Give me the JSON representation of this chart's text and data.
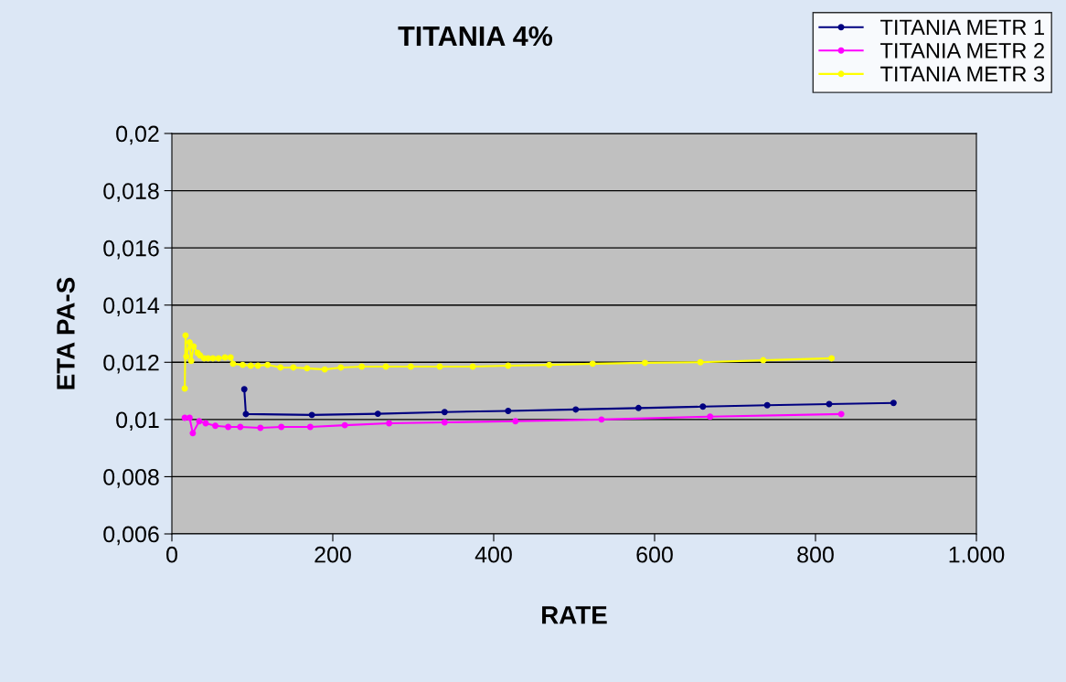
{
  "chart_data": {
    "type": "line",
    "title": "TITANIA 4%",
    "xlabel": "RATE",
    "ylabel": "ETA PA-S",
    "xlim": [
      0,
      1000
    ],
    "xticks": [
      0,
      200,
      400,
      600,
      800,
      {
        "value": 1000,
        "label": "1.000"
      }
    ],
    "ylim": [
      0.006,
      0.02
    ],
    "yticks": [
      {
        "value": 0.006,
        "label": "0,006"
      },
      {
        "value": 0.008,
        "label": "0,008"
      },
      {
        "value": 0.01,
        "label": "0,01"
      },
      {
        "value": 0.012,
        "label": "0,012"
      },
      {
        "value": 0.014,
        "label": "0,014"
      },
      {
        "value": 0.016,
        "label": "0,016"
      },
      {
        "value": 0.018,
        "label": "0,018"
      },
      {
        "value": 0.02,
        "label": "0,02"
      }
    ],
    "grid": "y",
    "legend": "top right",
    "marker": "circle",
    "series": [
      {
        "name": "TITANIA METR 1",
        "color": "#000080",
        "x": [
          90,
          92,
          174,
          256,
          339,
          418,
          502,
          580,
          660,
          740,
          817,
          897
        ],
        "values": [
          0.01106,
          0.01019,
          0.01016,
          0.0102,
          0.01026,
          0.0103,
          0.01035,
          0.0104,
          0.01045,
          0.0105,
          0.01054,
          0.01058
        ]
      },
      {
        "name": "TITANIA METR 2",
        "color": "#ff00ff",
        "x": [
          16,
          22,
          26,
          34,
          42,
          54,
          70,
          85,
          110,
          136,
          172,
          215,
          270,
          339,
          427,
          534,
          669,
          832
        ],
        "values": [
          0.01006,
          0.01006,
          0.00952,
          0.00994,
          0.00987,
          0.00978,
          0.00974,
          0.00974,
          0.00971,
          0.00974,
          0.00974,
          0.0098,
          0.00987,
          0.0099,
          0.00994,
          0.01,
          0.0101,
          0.01019
        ]
      },
      {
        "name": "TITANIA METR 3",
        "color": "#ffff00",
        "x": [
          16,
          17,
          18,
          22,
          24,
          27,
          32,
          35,
          40,
          45,
          51,
          58,
          66,
          73,
          76,
          88,
          98,
          107,
          119,
          135,
          151,
          168,
          190,
          210,
          236,
          266,
          297,
          333,
          374,
          418,
          469,
          523,
          588,
          657,
          735,
          820
        ],
        "values": [
          0.01108,
          0.01294,
          0.0122,
          0.0127,
          0.01205,
          0.01255,
          0.01233,
          0.01224,
          0.01214,
          0.01214,
          0.01214,
          0.01214,
          0.01217,
          0.01217,
          0.01195,
          0.01191,
          0.01188,
          0.01188,
          0.01191,
          0.01182,
          0.01182,
          0.01179,
          0.01175,
          0.01182,
          0.01185,
          0.01185,
          0.01185,
          0.01185,
          0.01185,
          0.01188,
          0.01191,
          0.01195,
          0.01198,
          0.012,
          0.01207,
          0.01214
        ]
      }
    ]
  }
}
